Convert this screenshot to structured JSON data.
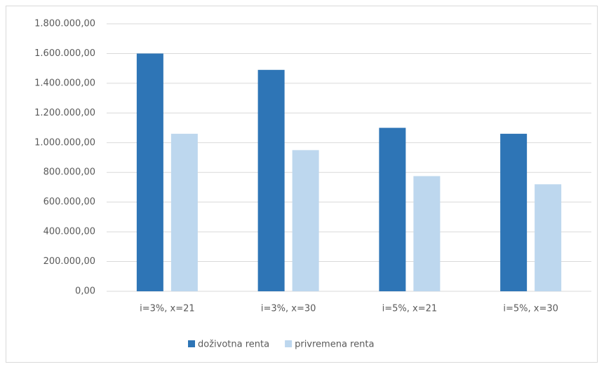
{
  "chart_data": {
    "type": "bar",
    "categories": [
      "i=3%, x=21",
      "i=3%, x=30",
      "i=5%, x=21",
      "i=5%, x=30"
    ],
    "series": [
      {
        "name": "doživotna renta",
        "color": "#2e75b6",
        "values": [
          1600000,
          1490000,
          1100000,
          1060000
        ]
      },
      {
        "name": "privremena renta",
        "color": "#bdd7ee",
        "values": [
          1060000,
          950000,
          775000,
          720000
        ]
      }
    ],
    "ylim": [
      0,
      1800000
    ],
    "yticks": [
      {
        "value": 0,
        "label": "0,00"
      },
      {
        "value": 200000,
        "label": "200.000,00"
      },
      {
        "value": 400000,
        "label": "400.000,00"
      },
      {
        "value": 600000,
        "label": "600.000,00"
      },
      {
        "value": 800000,
        "label": "800.000,00"
      },
      {
        "value": 1000000,
        "label": "1.000.000,00"
      },
      {
        "value": 1200000,
        "label": "1.200.000,00"
      },
      {
        "value": 1400000,
        "label": "1.400.000,00"
      },
      {
        "value": 1600000,
        "label": "1.600.000,00"
      },
      {
        "value": 1800000,
        "label": "1.800.000,00"
      }
    ],
    "grid": true,
    "legend": "bottom"
  }
}
